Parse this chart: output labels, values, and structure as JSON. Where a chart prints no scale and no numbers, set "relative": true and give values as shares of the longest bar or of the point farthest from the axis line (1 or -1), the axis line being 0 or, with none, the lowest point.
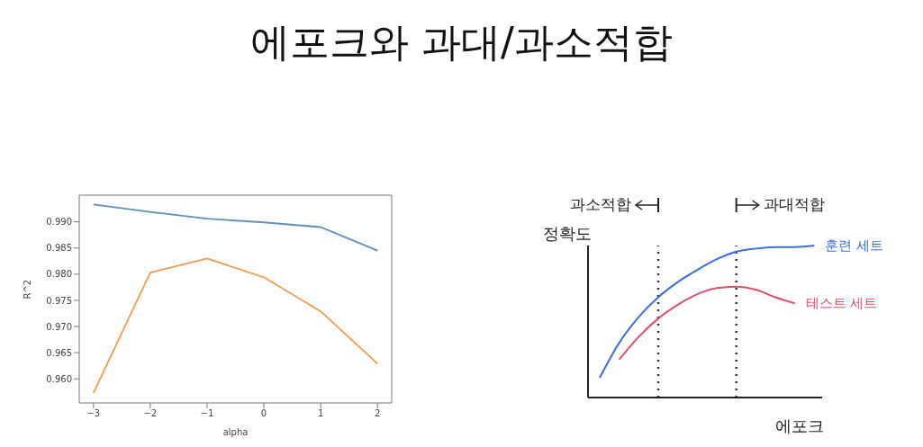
{
  "chart_data": [
    {
      "type": "line",
      "title": "에포크와 과대/과소적합",
      "xlabel": "alpha",
      "ylabel": "R^2",
      "x": [
        -3,
        -2,
        -1,
        0,
        1,
        2
      ],
      "series": [
        {
          "color": "#5f8fb8",
          "values": [
            0.9933,
            0.9919,
            0.9906,
            0.9899,
            0.989,
            0.9845
          ]
        },
        {
          "color": "#f59a50",
          "values": [
            0.9573,
            0.9803,
            0.983,
            0.9794,
            0.9729,
            0.9629
          ]
        }
      ],
      "xlim": [
        -3.25,
        2.25
      ],
      "xticks": [
        {
          "value": -3,
          "label": "−3"
        },
        {
          "value": -2,
          "label": "−2"
        },
        {
          "value": -1,
          "label": "−1"
        },
        0,
        1,
        2
      ],
      "ylim": [
        0.9554,
        0.9951
      ],
      "yticks": [
        {
          "value": 0.96,
          "label": "0.960"
        },
        {
          "value": 0.965,
          "label": "0.965"
        },
        {
          "value": 0.97,
          "label": "0.970"
        },
        {
          "value": 0.975,
          "label": "0.975"
        },
        {
          "value": 0.98,
          "label": "0.980"
        },
        {
          "value": 0.985,
          "label": "0.985"
        },
        {
          "value": 0.99,
          "label": "0.990"
        }
      ],
      "grid": false,
      "legend": false
    },
    {
      "type": "line",
      "relative": true,
      "xlabel": "에포크",
      "ylabel": "정확도",
      "annotations": [
        "과소적합",
        "과대적합"
      ],
      "categories": [
        null,
        null,
        null,
        null,
        null,
        null,
        null,
        null,
        null,
        null,
        null,
        null
      ],
      "series": [
        {
          "name": "훈련 세트",
          "color": "#3a6fd8",
          "values": [
            0.13,
            0.36,
            0.53,
            0.66,
            0.76,
            0.84,
            0.91,
            0.96,
            0.98,
            0.99,
            0.99,
            1
          ]
        },
        {
          "name": "테스트 세트",
          "color": "#e0506a",
          "values": [
            null,
            0.25,
            0.4,
            0.52,
            0.61,
            0.68,
            0.72,
            0.73,
            0.71,
            0.66,
            0.62,
            null
          ]
        }
      ]
    }
  ]
}
